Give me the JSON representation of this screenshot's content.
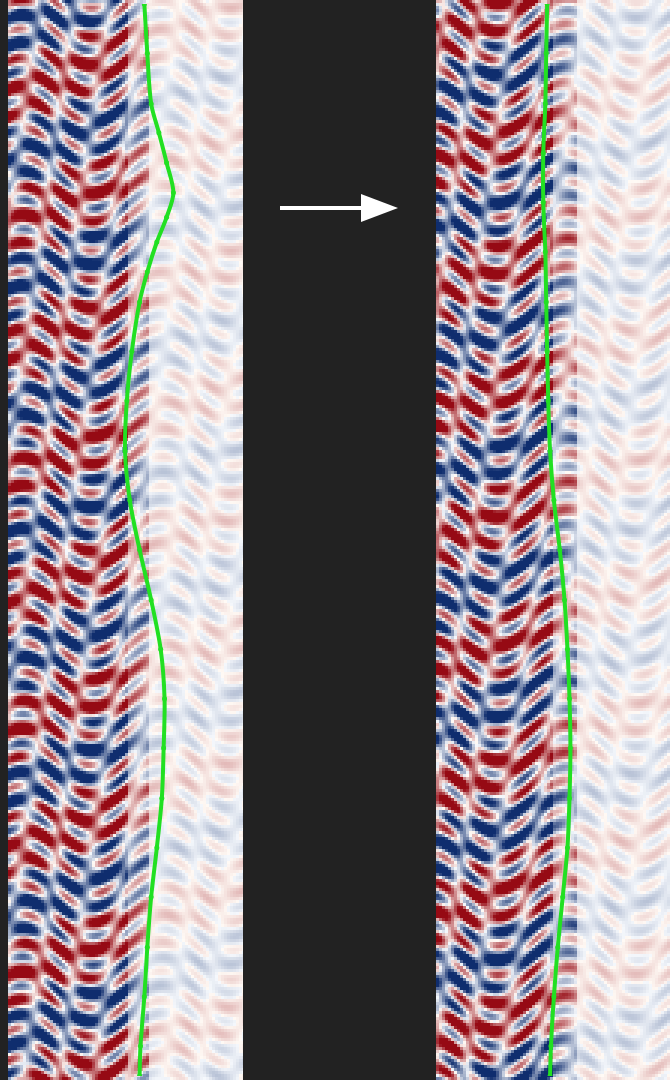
{
  "chart_data": [
    {
      "type": "scatter",
      "color": "#22e022",
      "marker": "circle",
      "line_style": "solid",
      "grid": false,
      "tick_labels": false,
      "xlim": [
        0,
        100
      ],
      "ylim": [
        0,
        100
      ],
      "x": [
        58.3,
        59.6,
        61.3,
        64.7,
        68.1,
        71.1,
        68.1,
        63.8,
        59.6,
        56.2,
        52.8,
        50.6,
        49.8,
        51.9,
        56.2,
        61.3,
        65.5,
        67.2,
        66.8,
        66.0,
        63.8,
        61.3,
        59.6,
        58.3,
        56.6,
        56.2
      ],
      "values": [
        0,
        4.6,
        9.3,
        12.0,
        14.8,
        17.6,
        19.9,
        22.2,
        25.0,
        27.8,
        32.4,
        37.0,
        41.7,
        46.3,
        50.9,
        55.6,
        60.2,
        64.8,
        69.4,
        74.1,
        78.7,
        83.3,
        88.0,
        92.6,
        97.2,
        100
      ]
    },
    {
      "type": "scatter",
      "color": "#22e022",
      "marker": "circle",
      "line_style": "solid",
      "grid": false,
      "tick_labels": false,
      "xlim": [
        0,
        100
      ],
      "ylim": [
        0,
        100
      ],
      "x": [
        47.4,
        47.0,
        46.6,
        45.7,
        45.7,
        46.6,
        47.0,
        47.4,
        47.9,
        48.7,
        50.4,
        53.0,
        55.1,
        56.4,
        57.3,
        57.7,
        57.3,
        56.4,
        54.3,
        52.1,
        50.4,
        49.1,
        48.7
      ],
      "values": [
        0,
        4.6,
        9.3,
        13.9,
        18.5,
        23.1,
        27.8,
        32.4,
        37.0,
        41.7,
        46.3,
        50.9,
        55.6,
        60.2,
        64.8,
        69.4,
        74.1,
        78.7,
        83.3,
        88.0,
        92.6,
        97.2,
        100
      ]
    }
  ]
}
